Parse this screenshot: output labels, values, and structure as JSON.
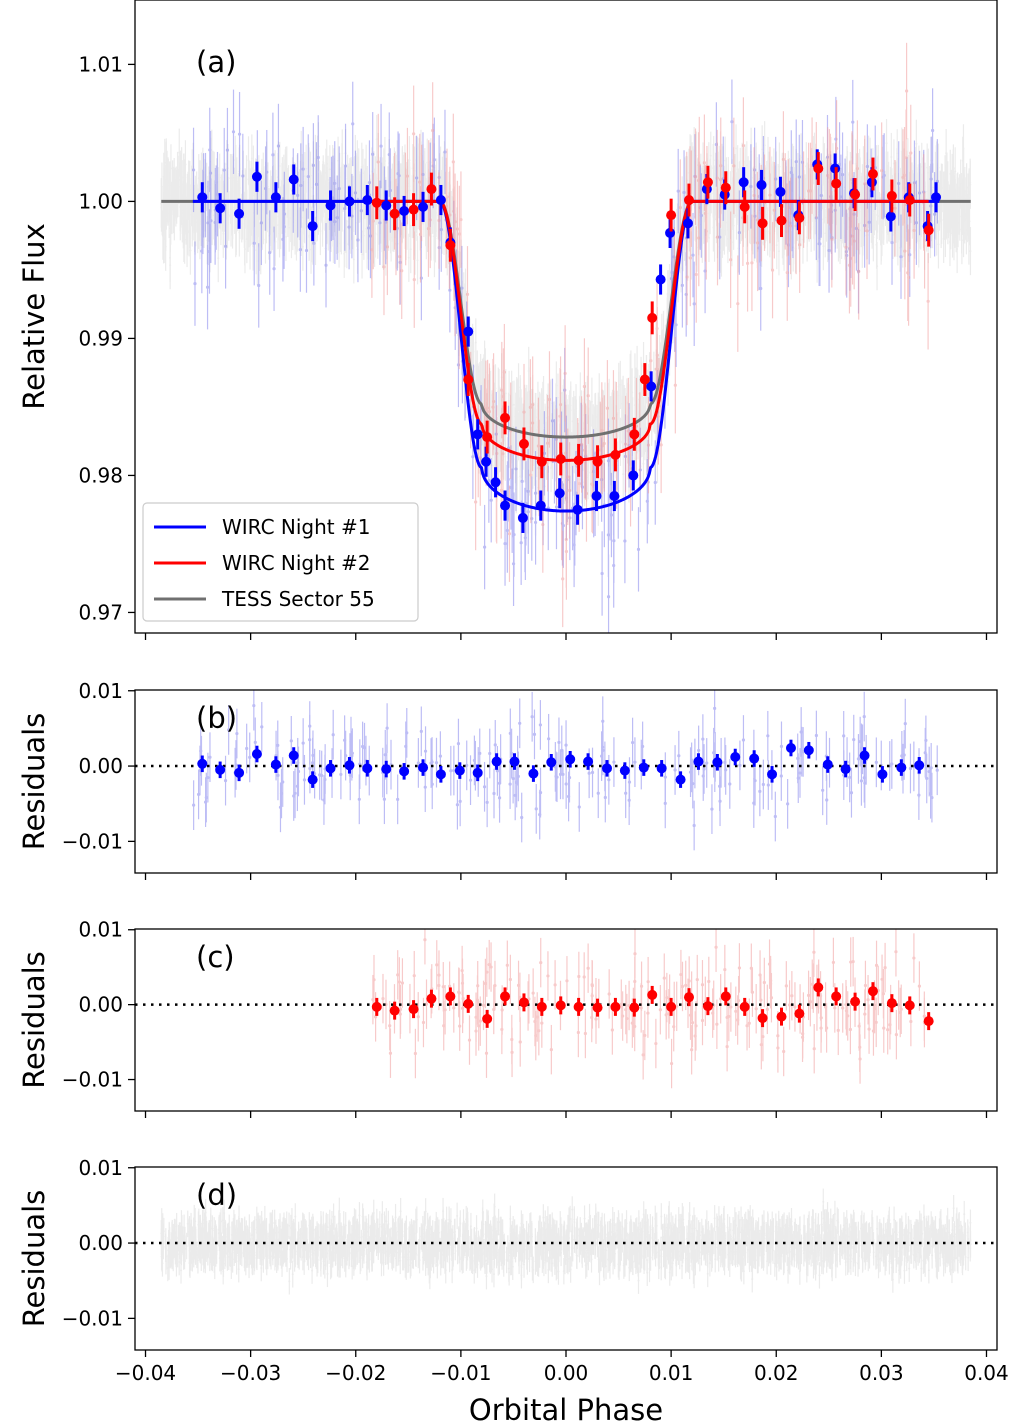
{
  "chart_data": {
    "type": "scatter",
    "xlabel": "Orbital Phase",
    "xlim": [
      -0.041,
      0.041
    ],
    "xticks": [
      -0.04,
      -0.03,
      -0.02,
      -0.01,
      0.0,
      0.01,
      0.02,
      0.03,
      0.04
    ],
    "xtick_labels": [
      "−0.04",
      "−0.03",
      "−0.02",
      "−0.01",
      "0.00",
      "0.01",
      "0.02",
      "0.03",
      "0.04"
    ],
    "colors": {
      "wirc1": "#0000ff",
      "wirc1_light": "#8888ee",
      "wirc2": "#ff0000",
      "wirc2_light": "#f2a0a0",
      "tess": "#707070",
      "tess_light": "#c8c8c8"
    },
    "panels": [
      {
        "id": "a",
        "letter": "(a)",
        "ylabel": "Relative Flux",
        "ylim": [
          0.9685,
          1.0147
        ],
        "yticks": [
          0.97,
          0.98,
          0.99,
          1.0,
          1.01
        ],
        "ytick_labels": [
          "0.97",
          "0.98",
          "0.99",
          "1.00",
          "1.01"
        ],
        "model": {
          "half_width": 0.0105,
          "ingress": 0.0025
        },
        "series": [
          {
            "name": "TESS Sector 55",
            "color_key": "tess",
            "depth": 0.0172,
            "x_range": [
              -0.0385,
              0.0385
            ],
            "binned": []
          },
          {
            "name": "WIRC Night #1",
            "color_key": "wirc1",
            "depth": 0.0226,
            "x_range": [
              -0.0355,
              0.0355
            ],
            "binned": {
              "x": [
                -0.0346,
                -0.0329,
                -0.0311,
                -0.0294,
                -0.0276,
                -0.0259,
                -0.0241,
                -0.0224,
                -0.0206,
                -0.0189,
                -0.0171,
                -0.0154,
                -0.0136,
                -0.0119,
                -0.011,
                -0.0093,
                -0.0084,
                -0.0076,
                -0.0067,
                -0.0058,
                -0.0041,
                -0.0024,
                -0.0006,
                0.0011,
                0.0029,
                0.0046,
                0.0064,
                0.0081,
                0.009,
                0.0099,
                0.0116,
                0.0134,
                0.0151,
                0.0169,
                0.0186,
                0.0204,
                0.0221,
                0.0239,
                0.0256,
                0.0274,
                0.0291,
                0.0309,
                0.0326,
                0.0344,
                0.0352
              ],
              "y": [
                1.0003,
                0.9995,
                0.9991,
                1.0018,
                1.0003,
                1.0016,
                0.9982,
                0.9997,
                1.0,
                1.0001,
                0.9997,
                0.9993,
                0.9996,
                1.0001,
                0.997,
                0.9905,
                0.983,
                0.981,
                0.9795,
                0.9778,
                0.9769,
                0.9778,
                0.9787,
                0.9775,
                0.9785,
                0.9785,
                0.98,
                0.9865,
                0.9943,
                0.9977,
                0.9984,
                1.0009,
                1.0005,
                1.0014,
                1.0012,
                1.0007,
                0.999,
                1.0027,
                1.0024,
                1.0006,
                1.0014,
                0.9989,
                1.0003,
                0.9982,
                1.0003
              ],
              "err": [
                0.0011,
                0.0011,
                0.0011,
                0.0011,
                0.0011,
                0.0011,
                0.0011,
                0.0011,
                0.0011,
                0.0011,
                0.0011,
                0.0011,
                0.0011,
                0.0011,
                0.0011,
                0.0011,
                0.0011,
                0.0011,
                0.0011,
                0.0011,
                0.0011,
                0.0011,
                0.0011,
                0.0011,
                0.0011,
                0.0011,
                0.0011,
                0.0011,
                0.0011,
                0.0011,
                0.0011,
                0.0011,
                0.0011,
                0.0011,
                0.0011,
                0.0011,
                0.0011,
                0.0011,
                0.0011,
                0.0011,
                0.0011,
                0.0011,
                0.0011,
                0.0011,
                0.0011
              ]
            }
          },
          {
            "name": "WIRC Night #2",
            "color_key": "wirc2",
            "depth": 0.0189,
            "x_range": [
              -0.0185,
              0.0345
            ],
            "binned": {
              "x": [
                -0.018,
                -0.0163,
                -0.0145,
                -0.0128,
                -0.011,
                -0.0093,
                -0.0075,
                -0.0058,
                -0.004,
                -0.0023,
                -0.0005,
                0.0012,
                0.003,
                0.0047,
                0.0065,
                0.0075,
                0.0082,
                0.01,
                0.0117,
                0.0135,
                0.0152,
                0.017,
                0.0187,
                0.0205,
                0.0222,
                0.024,
                0.0257,
                0.0275,
                0.0292,
                0.031,
                0.0327,
                0.0345
              ],
              "y": [
                0.9999,
                0.9991,
                0.9994,
                1.0009,
                0.9968,
                0.987,
                0.9828,
                0.9842,
                0.9823,
                0.981,
                0.9812,
                0.9811,
                0.981,
                0.9815,
                0.983,
                0.987,
                0.9915,
                0.999,
                1.0001,
                1.0014,
                1.001,
                0.9996,
                0.9984,
                0.9986,
                0.9988,
                1.0024,
                1.0013,
                1.0005,
                1.002,
                1.0004,
                1.0001,
                0.9979
              ],
              "err": [
                0.0012,
                0.0012,
                0.0012,
                0.0012,
                0.0012,
                0.0012,
                0.0012,
                0.0012,
                0.0012,
                0.0012,
                0.0012,
                0.0012,
                0.0012,
                0.0012,
                0.0012,
                0.0012,
                0.0012,
                0.0012,
                0.0012,
                0.0012,
                0.0012,
                0.0012,
                0.0012,
                0.0012,
                0.0012,
                0.0012,
                0.0012,
                0.0012,
                0.0012,
                0.0012,
                0.0012,
                0.0012
              ]
            }
          }
        ],
        "legend": {
          "position": "lower-left",
          "entries": [
            "WIRC Night #1",
            "WIRC Night #2",
            "TESS Sector 55"
          ]
        }
      },
      {
        "id": "b",
        "letter": "(b)",
        "ylabel": "Residuals",
        "ylim": [
          -0.0142,
          0.0101
        ],
        "yticks": [
          -0.01,
          0.0,
          0.01
        ],
        "ytick_labels": [
          "−0.01",
          "0.00",
          "0.01"
        ],
        "series": {
          "name": "WIRC Night #1 residuals",
          "color_key": "wirc1",
          "x_range": [
            -0.0355,
            0.0355
          ],
          "binned": {
            "x": [
              -0.0346,
              -0.0329,
              -0.0311,
              -0.0294,
              -0.0276,
              -0.0259,
              -0.0241,
              -0.0224,
              -0.0206,
              -0.0189,
              -0.0171,
              -0.0154,
              -0.0136,
              -0.0119,
              -0.0101,
              -0.0084,
              -0.0066,
              -0.0049,
              -0.0031,
              -0.0014,
              0.0004,
              0.0021,
              0.0039,
              0.0056,
              0.0074,
              0.0091,
              0.0109,
              0.0126,
              0.0144,
              0.0161,
              0.0179,
              0.0196,
              0.0214,
              0.0231,
              0.0249,
              0.0266,
              0.0284,
              0.0301,
              0.0319,
              0.0336
            ],
            "y": [
              0.0003,
              -0.0005,
              -0.0009,
              0.0016,
              0.0002,
              0.0014,
              -0.0018,
              -0.0003,
              0.0001,
              -0.0003,
              -0.0004,
              -0.0007,
              -0.0002,
              -0.0011,
              -0.0006,
              -0.0009,
              0.0006,
              0.0006,
              -0.001,
              0.0005,
              0.0009,
              0.0006,
              -0.0003,
              -0.0006,
              -0.0002,
              -0.0003,
              -0.0018,
              0.0006,
              0.0005,
              0.0012,
              0.001,
              -0.0011,
              0.0024,
              0.0021,
              0.0002,
              -0.0004,
              0.0014,
              -0.0011,
              -0.0002,
              0.0001
            ],
            "err": [
              0.0011,
              0.0011,
              0.0011,
              0.0011,
              0.0011,
              0.0011,
              0.0011,
              0.0011,
              0.0011,
              0.0011,
              0.0011,
              0.0011,
              0.0011,
              0.0011,
              0.0011,
              0.0011,
              0.0011,
              0.0011,
              0.0011,
              0.0011,
              0.0011,
              0.0011,
              0.0011,
              0.0011,
              0.0011,
              0.0011,
              0.0011,
              0.0011,
              0.0011,
              0.0011,
              0.0011,
              0.0011,
              0.0011,
              0.0011,
              0.0011,
              0.0011,
              0.0011,
              0.0011,
              0.0011,
              0.0011
            ]
          }
        }
      },
      {
        "id": "c",
        "letter": "(c)",
        "ylabel": "Residuals",
        "ylim": [
          -0.0142,
          0.0101
        ],
        "yticks": [
          -0.01,
          0.0,
          0.01
        ],
        "ytick_labels": [
          "−0.01",
          "0.00",
          "0.01"
        ],
        "series": {
          "name": "WIRC Night #2 residuals",
          "color_key": "wirc2",
          "x_range": [
            -0.0185,
            0.0345
          ],
          "binned": {
            "x": [
              -0.018,
              -0.0163,
              -0.0145,
              -0.0128,
              -0.011,
              -0.0093,
              -0.0075,
              -0.0058,
              -0.004,
              -0.0023,
              -0.0005,
              0.0012,
              0.003,
              0.0047,
              0.0065,
              0.0082,
              0.01,
              0.0117,
              0.0135,
              0.0152,
              0.017,
              0.0187,
              0.0205,
              0.0222,
              0.024,
              0.0257,
              0.0275,
              0.0292,
              0.031,
              0.0327,
              0.0345
            ],
            "y": [
              -0.0003,
              -0.0008,
              -0.0006,
              0.0008,
              0.0011,
              0.0001,
              -0.0019,
              0.0011,
              0.0003,
              -0.0003,
              -0.0001,
              -0.0003,
              -0.0004,
              -0.0003,
              -0.0004,
              0.0013,
              -0.0003,
              0.001,
              -0.0002,
              0.0011,
              -0.0003,
              -0.0018,
              -0.0016,
              -0.0012,
              0.0023,
              0.0011,
              0.0004,
              0.0018,
              0.0002,
              -0.0001,
              -0.0022
            ],
            "err": [
              0.0012,
              0.0012,
              0.0012,
              0.0012,
              0.0012,
              0.0012,
              0.0012,
              0.0012,
              0.0012,
              0.0012,
              0.0012,
              0.0012,
              0.0012,
              0.0012,
              0.0012,
              0.0012,
              0.0012,
              0.0012,
              0.0012,
              0.0012,
              0.0012,
              0.0012,
              0.0012,
              0.0012,
              0.0012,
              0.0012,
              0.0012,
              0.0012,
              0.0012,
              0.0012,
              0.0012
            ]
          }
        }
      },
      {
        "id": "d",
        "letter": "(d)",
        "ylabel": "Residuals",
        "ylim": [
          -0.0142,
          0.0101
        ],
        "yticks": [
          -0.01,
          0.0,
          0.01
        ],
        "ytick_labels": [
          "−0.01",
          "0.00",
          "0.01"
        ],
        "series": {
          "name": "TESS Sector 55 residuals",
          "color_key": "tess",
          "x_range": [
            -0.0385,
            0.0385
          ],
          "binned": []
        }
      }
    ]
  }
}
